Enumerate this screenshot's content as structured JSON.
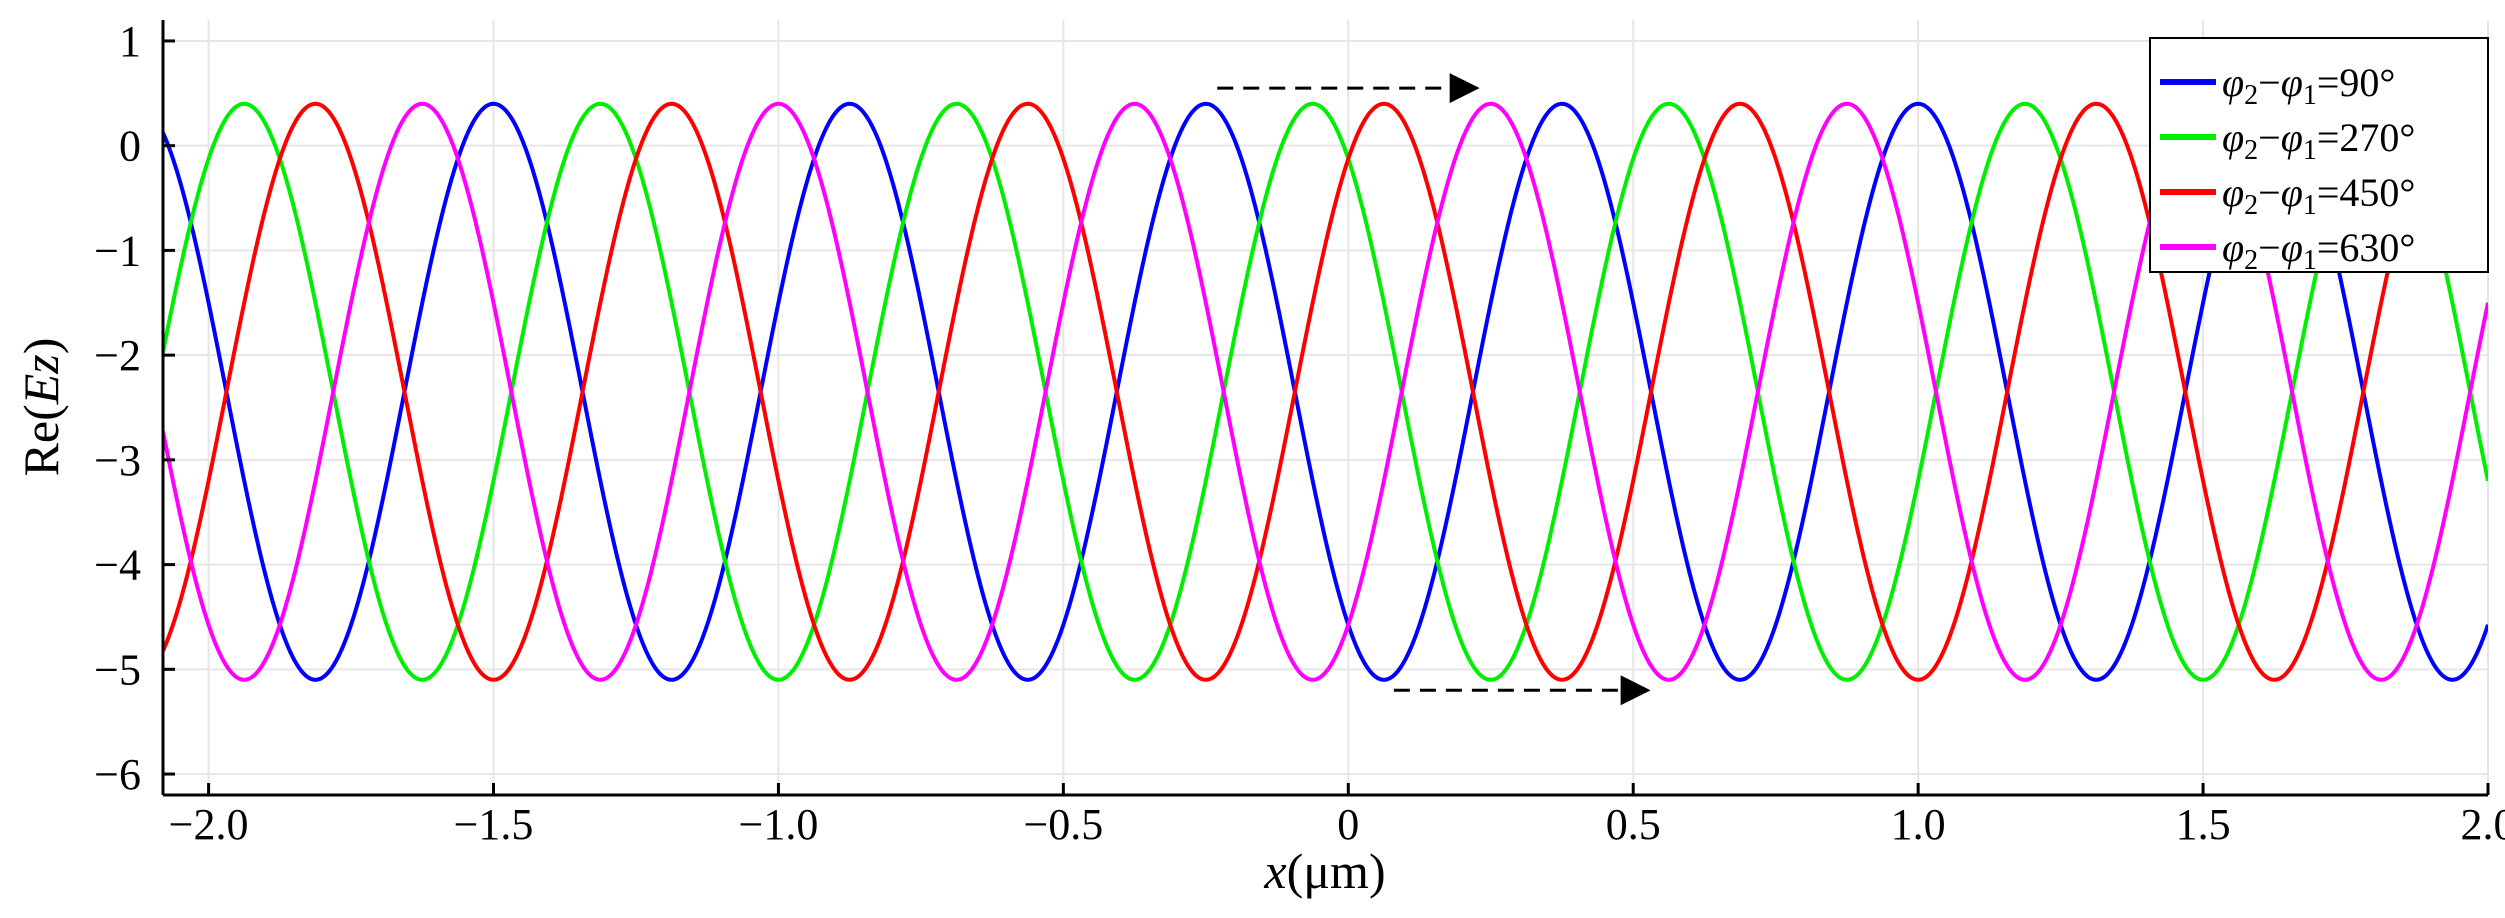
{
  "chart_data": {
    "type": "line",
    "title": "",
    "xlabel": {
      "italic": "x",
      "rest": "(μm)"
    },
    "ylabel": {
      "prefix": "Re(",
      "italic": "Ez",
      "suffix": ")"
    },
    "xlim": [
      -2.08,
      2.0
    ],
    "ylim": [
      -6.2,
      1.2
    ],
    "xticks": [
      -2.0,
      -1.5,
      -1.0,
      -0.5,
      0,
      0.5,
      1.0,
      1.5,
      2.0
    ],
    "xtick_labels": [
      "−2.0",
      "−1.5",
      "−1.0",
      "−0.5",
      "0",
      "0.5",
      "1.0",
      "1.5",
      "2.0"
    ],
    "yticks": [
      1,
      0,
      -1,
      -2,
      -3,
      -4,
      -5,
      -6
    ],
    "ytick_labels": [
      "1",
      "0",
      "−1",
      "−2",
      "−3",
      "−4",
      "−5",
      "−6"
    ],
    "grid": true,
    "legend_position": "top-right",
    "period": 0.625,
    "series": [
      {
        "name": "φ₂−φ₁=90°",
        "color": "#0000ff",
        "offset": -2.35,
        "amplitude": 2.75,
        "first_peak_x": -1.5
      },
      {
        "name": "φ₂−φ₁=270°",
        "color": "#00ee00",
        "offset": -2.35,
        "amplitude": 2.75,
        "first_peak_x": -1.3125
      },
      {
        "name": "φ₂−φ₁=450°",
        "color": "#ff0000",
        "offset": -2.35,
        "amplitude": 2.75,
        "first_peak_x": -1.8125
      },
      {
        "name": "φ₂−φ₁=630°",
        "color": "#ff00ff",
        "offset": -2.35,
        "amplitude": 2.75,
        "first_peak_x": -1.625
      }
    ],
    "legend": [
      {
        "sub1": "2",
        "sub2": "1",
        "value": "=90°"
      },
      {
        "sub1": "2",
        "sub2": "1",
        "value": "=270°"
      },
      {
        "sub1": "2",
        "sub2": "1",
        "value": "=450°"
      },
      {
        "sub1": "2",
        "sub2": "1",
        "value": "=630°"
      }
    ],
    "annotations": [
      {
        "type": "dashed-arrow",
        "x_start": -0.23,
        "x_end": 0.22,
        "y": 0.55
      },
      {
        "type": "dashed-arrow",
        "x_start": 0.08,
        "x_end": 0.52,
        "y": -5.2
      }
    ]
  }
}
